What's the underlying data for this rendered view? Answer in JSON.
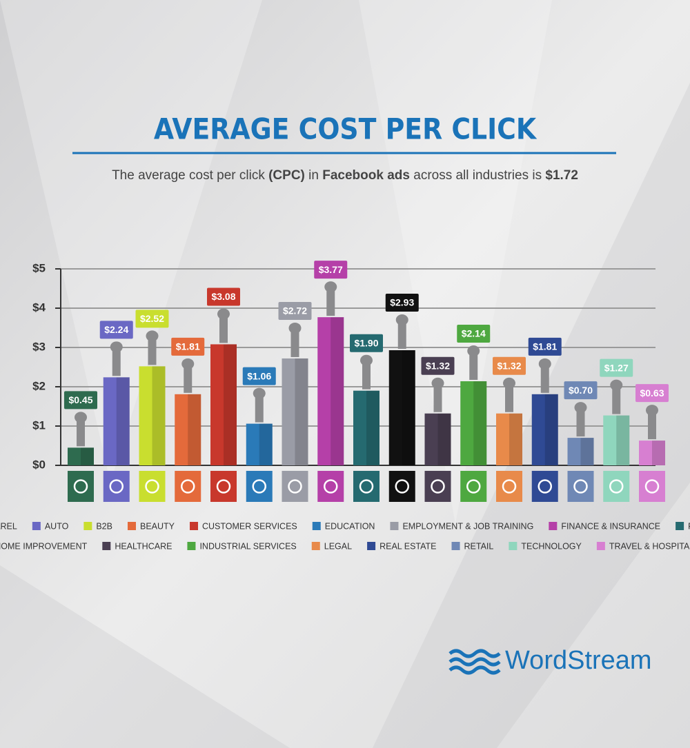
{
  "chart_data": {
    "type": "bar",
    "title": "AVERAGE COST PER CLICK",
    "subtitle_parts": [
      {
        "text": "The average cost per click ",
        "bold": false
      },
      {
        "text": "(CPC)",
        "bold": true
      },
      {
        "text": " in ",
        "bold": false
      },
      {
        "text": "Facebook ads",
        "bold": true
      },
      {
        "text": " across all industries is ",
        "bold": false
      },
      {
        "text": "$1.72",
        "bold": true
      }
    ],
    "categories": [
      "APPAREL",
      "AUTO",
      "B2B",
      "BEAUTY",
      "CUSTOMER SERVICES",
      "EDUCATION",
      "EMPLOYMENT & JOB TRAINING",
      "FINANCE & INSURANCE",
      "FITNESS",
      "HOME IMPROVEMENT",
      "HEALTHCARE",
      "INDUSTRIAL SERVICES",
      "LEGAL",
      "REAL ESTATE",
      "RETAIL",
      "TECHNOLOGY",
      "TRAVEL & HOSPITALITY"
    ],
    "values": [
      0.45,
      2.24,
      2.52,
      1.81,
      3.08,
      1.06,
      2.72,
      3.77,
      1.9,
      2.93,
      1.32,
      2.14,
      1.32,
      1.81,
      0.7,
      1.27,
      0.63
    ],
    "value_labels": [
      "$0.45",
      "$2.24",
      "$2.52",
      "$1.81",
      "$3.08",
      "$1.06",
      "$2.72",
      "$3.77",
      "$1.90",
      "$2.93",
      "$1.32",
      "$2.14",
      "$1.32",
      "$1.81",
      "$0.70",
      "$1.27",
      "$0.63"
    ],
    "colors": [
      "#2e6b4f",
      "#6a68c4",
      "#c9de2f",
      "#e46a3b",
      "#c8382c",
      "#2a7ab8",
      "#9a9ca6",
      "#b540a8",
      "#256a70",
      "#111111",
      "#4a3f52",
      "#4ea840",
      "#e88a4a",
      "#2f4a94",
      "#6f88b5",
      "#8fd6bd",
      "#d77fd1"
    ],
    "ylim": [
      0,
      5
    ],
    "yticks": [
      {
        "value": 0,
        "label": "$0"
      },
      {
        "value": 1,
        "label": "$1"
      },
      {
        "value": 2,
        "label": "$2"
      },
      {
        "value": 3,
        "label": "$3"
      },
      {
        "value": 4,
        "label": "$4"
      },
      {
        "value": 5,
        "label": "$5"
      }
    ],
    "grid": true
  },
  "brand": "WordStream"
}
